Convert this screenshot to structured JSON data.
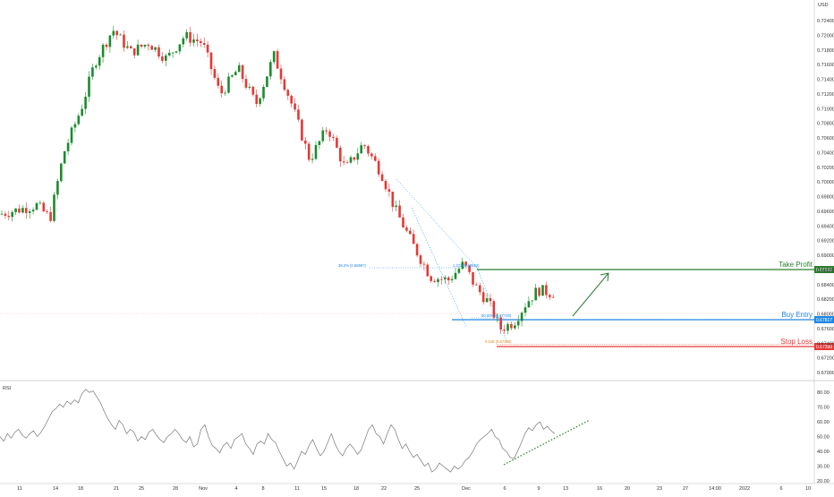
{
  "currency": "USD",
  "colors": {
    "up": "#26a69a",
    "up_fill": "#1a8c2e",
    "down": "#e53935",
    "take_profit": "#2e7d32",
    "buy_entry": "#1e88e5",
    "stop_loss": "#e53935",
    "fib": "#1e88e5",
    "rsi_line": "#777777",
    "trend": "#2e7d32"
  },
  "chart_data": [
    {
      "type": "candlestick",
      "ylim": [
        0.668,
        0.725
      ],
      "y_ticks": [
        "0.72400",
        "0.72000",
        "0.71800",
        "0.71600",
        "0.71400",
        "0.71200",
        "0.71000",
        "0.70800",
        "0.70600",
        "0.70400",
        "0.70200",
        "0.70000",
        "0.69800",
        "0.69600",
        "0.69400",
        "0.69200",
        "0.69000",
        "0.68800",
        "0.68400",
        "0.68200",
        "0.68000",
        "0.67600",
        "0.67400",
        "0.67200",
        "0.67000"
      ],
      "x_ticks": [
        "11",
        "14",
        "18",
        "21",
        "25",
        "28",
        "Nov",
        "4",
        "8",
        "11",
        "15",
        "18",
        "22",
        "25",
        "Dec",
        "6",
        "9",
        "13",
        "16",
        "20",
        "23",
        "27",
        "14:00",
        "2022",
        "6",
        "10"
      ],
      "price_levels": [
        {
          "name": "Take Profit",
          "value": 0.6859,
          "label": "0.68592"
        },
        {
          "name": "Buy Entry",
          "value": 0.6782,
          "label": "0.67817"
        },
        {
          "name": "Stop Loss",
          "value": 0.674,
          "label": "0.67398"
        }
      ],
      "fib_labels": [
        "38.2% (0.68597)",
        "1.272 (0.68592)",
        "50.00% (0.67720)",
        "0.618 (0.67398)"
      ]
    },
    {
      "type": "line",
      "title": "RSI",
      "ylim": [
        20,
        85
      ],
      "y_ticks": [
        "80.00",
        "70.00",
        "60.00",
        "50.00",
        "40.00",
        "30.00",
        "20.00"
      ],
      "values": [
        50,
        47,
        52,
        49,
        53,
        55,
        51,
        49,
        52,
        54,
        50,
        53,
        57,
        62,
        67,
        69,
        72,
        70,
        74,
        72,
        75,
        73,
        79,
        82,
        80,
        81,
        77,
        73,
        67,
        62,
        58,
        55,
        61,
        58,
        52,
        55,
        53,
        47,
        50,
        48,
        53,
        55,
        51,
        48,
        46,
        50,
        52,
        55,
        52,
        48,
        46,
        50,
        43,
        45,
        55,
        58,
        50,
        44,
        42,
        39,
        44,
        46,
        42,
        48,
        50,
        52,
        45,
        42,
        38,
        45,
        47,
        45,
        52,
        48,
        46,
        40,
        35,
        30,
        32,
        28,
        34,
        40,
        38,
        44,
        48,
        42,
        37,
        40,
        46,
        52,
        45,
        40,
        37,
        42,
        45,
        42,
        38,
        41,
        48,
        55,
        58,
        52,
        50,
        45,
        52,
        58,
        55,
        48,
        42,
        45,
        40,
        36,
        38,
        34,
        30,
        32,
        26,
        28,
        32,
        30,
        28,
        26,
        30,
        28,
        30,
        34,
        36,
        40,
        45,
        48,
        50,
        52,
        55,
        50,
        48,
        42,
        40,
        36,
        35,
        40,
        46,
        52,
        56,
        54,
        58,
        60,
        55,
        57,
        54,
        52
      ]
    }
  ]
}
